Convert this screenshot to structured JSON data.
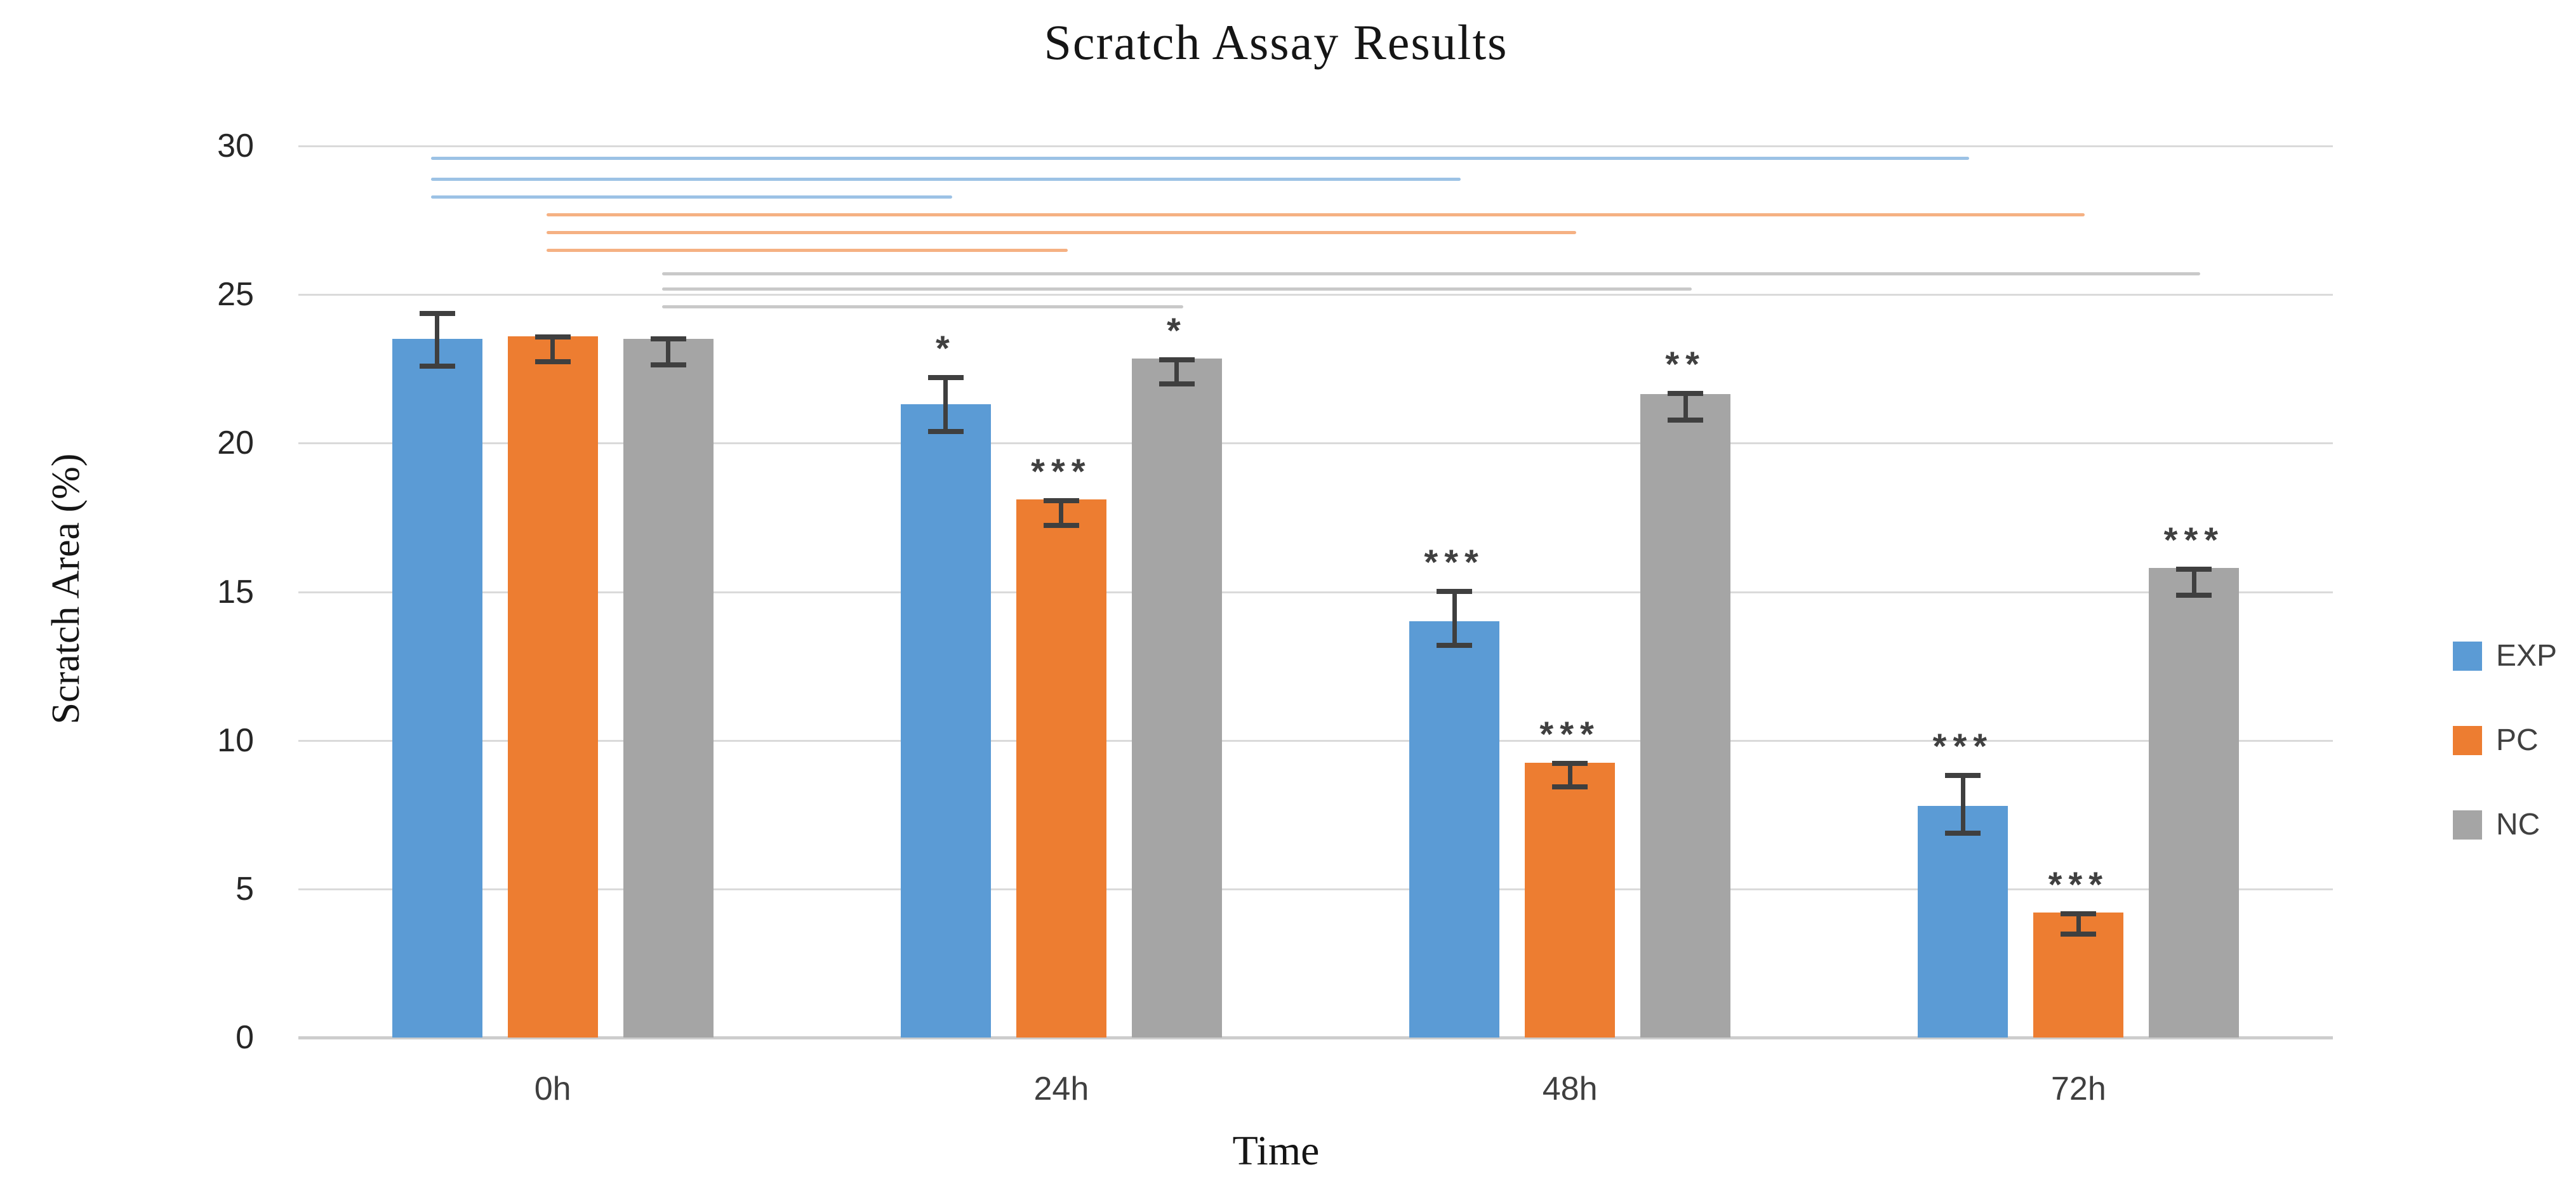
{
  "page": {
    "background": "#ffffff"
  },
  "chart_data": {
    "type": "bar",
    "title": "Scratch Assay Results",
    "xlabel": "Time",
    "ylabel": "Scratch Area (%)",
    "ylim": [
      0,
      30
    ],
    "yticks": [
      0,
      5,
      10,
      15,
      20,
      25,
      30
    ],
    "categories": [
      "0h",
      "24h",
      "48h",
      "72h"
    ],
    "grid": "horizontal",
    "legend_position": "right",
    "colors": {
      "gridline": "#dadada",
      "baseline": "#cdcdcd",
      "error_bar": "#3f3f3f",
      "significance_marks": "#404040",
      "tick_text": "#262626",
      "category_text": "#3f3f3f",
      "legend_text": "#404040",
      "title_text": "#151515"
    },
    "series": [
      {
        "name": "EXP",
        "color": "#5B9BD5",
        "bracket_color": "#9CC2E5",
        "values": [
          23.5,
          21.3,
          14.0,
          7.8
        ],
        "err_hi": [
          24.45,
          22.3,
          15.1,
          8.9
        ],
        "err_lo": [
          22.5,
          20.3,
          13.1,
          6.8
        ],
        "sig": [
          "",
          "*",
          "***",
          "***"
        ]
      },
      {
        "name": "PC",
        "color": "#ED7D31",
        "bracket_color": "#F5B183",
        "values": [
          23.6,
          18.1,
          9.25,
          4.2
        ],
        "err_hi": [
          23.65,
          18.15,
          9.3,
          4.25
        ],
        "err_lo": [
          22.65,
          17.15,
          8.35,
          3.4
        ],
        "sig": [
          "",
          "***",
          "***",
          "***"
        ]
      },
      {
        "name": "NC",
        "color": "#A5A5A5",
        "bracket_color": "#C9C9C9",
        "values": [
          23.5,
          22.85,
          21.65,
          15.8
        ],
        "err_hi": [
          23.6,
          22.9,
          21.75,
          15.85
        ],
        "err_lo": [
          22.55,
          21.9,
          20.7,
          14.8
        ],
        "sig": [
          "",
          "*",
          "**",
          "***"
        ]
      }
    ],
    "comparison_brackets": [
      {
        "series": "EXP",
        "from": "0h",
        "to": "72h",
        "y": 29.6
      },
      {
        "series": "EXP",
        "from": "0h",
        "to": "48h",
        "y": 28.9
      },
      {
        "series": "EXP",
        "from": "0h",
        "to": "24h",
        "y": 28.3
      },
      {
        "series": "PC",
        "from": "0h",
        "to": "72h",
        "y": 27.7
      },
      {
        "series": "PC",
        "from": "0h",
        "to": "48h",
        "y": 27.1
      },
      {
        "series": "PC",
        "from": "0h",
        "to": "24h",
        "y": 26.5
      },
      {
        "series": "NC",
        "from": "0h",
        "to": "72h",
        "y": 25.7
      },
      {
        "series": "NC",
        "from": "0h",
        "to": "48h",
        "y": 25.2
      },
      {
        "series": "NC",
        "from": "0h",
        "to": "24h",
        "y": 24.6
      }
    ]
  }
}
